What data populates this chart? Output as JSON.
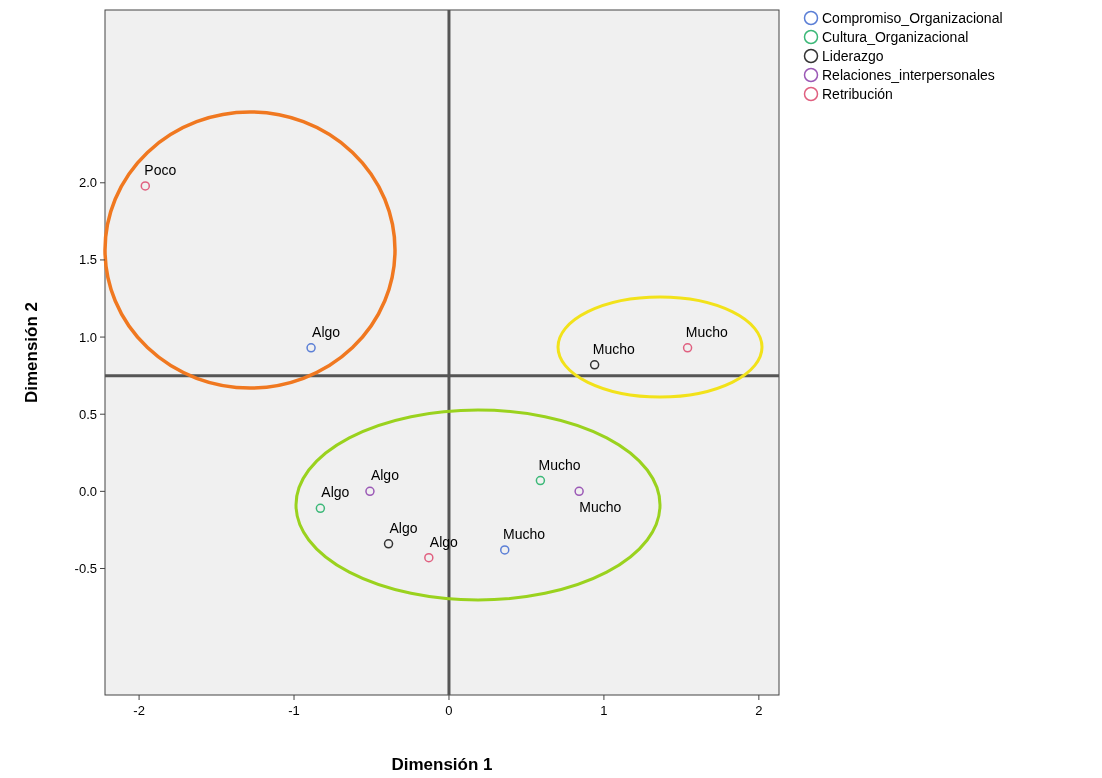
{
  "chart_data": {
    "type": "scatter",
    "xlabel": "Dimensión 1",
    "ylabel": "Dimensión 2",
    "xlim": [
      -2.22,
      2.13
    ],
    "ylim": [
      -1.32,
      3.12
    ],
    "xticks": [
      -2,
      -1,
      0,
      1,
      2
    ],
    "yticks": [
      {
        "value": -0.5,
        "label": "-0.5"
      },
      {
        "value": 0,
        "label": "0.0"
      },
      {
        "value": 0.5,
        "label": "0.5"
      },
      {
        "value": 1,
        "label": "1.0"
      },
      {
        "value": 1.5,
        "label": "1.5"
      },
      {
        "value": 2,
        "label": "2.0"
      }
    ],
    "grid": false,
    "legend": "top right",
    "marker": "circle",
    "ref_lines": [
      {
        "axis": "x",
        "value": 0,
        "color": "#555555"
      },
      {
        "axis": "y",
        "value": 0.75,
        "color": "#555555"
      }
    ],
    "series": [
      {
        "name": "Compromiso_Organizacional",
        "color": "#5b7fd6",
        "x": [
          -0.89,
          0.36
        ],
        "values": [
          0.93,
          -0.38
        ],
        "value_labels": [
          "Algo",
          "Mucho"
        ]
      },
      {
        "name": "Cultura_Organizacional",
        "color": "#3cb878",
        "x": [
          -0.83,
          0.59
        ],
        "values": [
          -0.11,
          0.07
        ],
        "value_labels": [
          "Algo",
          "Mucho"
        ]
      },
      {
        "name": "Liderazgo",
        "color": "#333333",
        "x": [
          -0.39,
          0.94
        ],
        "values": [
          -0.34,
          0.82
        ],
        "value_labels": [
          "Algo",
          "Mucho"
        ]
      },
      {
        "name": "Relaciones_interpersonales",
        "color": "#9b59b6",
        "x": [
          -0.51,
          0.84
        ],
        "values": [
          0,
          0
        ],
        "value_labels": [
          "Algo",
          "Mucho"
        ]
      },
      {
        "name": "Retribución",
        "color": "#e06080",
        "x": [
          -1.96,
          -0.13,
          1.54
        ],
        "values": [
          1.98,
          -0.43,
          0.93
        ],
        "value_labels": [
          "Poco",
          "Algo",
          "Mucho"
        ]
      }
    ]
  }
}
